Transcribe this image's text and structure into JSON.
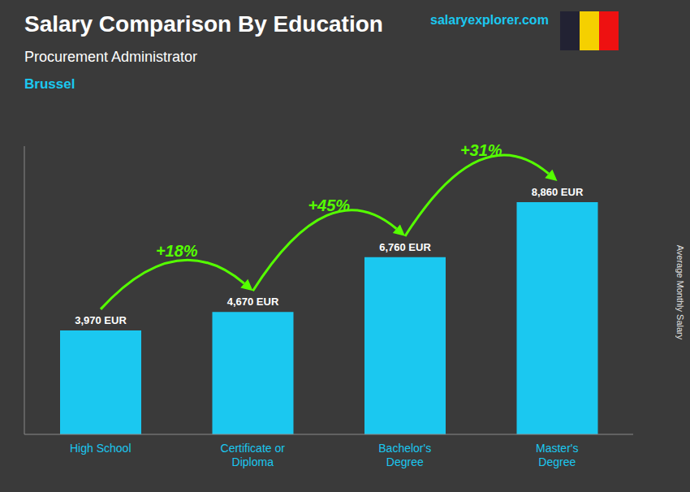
{
  "chart_data": {
    "type": "bar",
    "title": "Salary Comparison By Education",
    "subtitle": "Procurement Administrator",
    "ylabel": "Average Monthly Salary",
    "annotations": [
      "Brussel",
      "salaryexplorer.com",
      "+18%",
      "+45%",
      "+31%"
    ],
    "categories": [
      "High School",
      "Certificate or\nDiploma",
      "Bachelor's\nDegree",
      "Master's\nDegree"
    ],
    "values": [
      3970,
      4670,
      6760,
      8860
    ],
    "value_labels": [
      "3,970 EUR",
      "4,670 EUR",
      "6,760 EUR",
      "8,860 EUR"
    ],
    "data_labels": true,
    "color": "#1BC8F0",
    "ylim": [
      0,
      11000
    ],
    "tick_labels": "x",
    "grid": false
  }
}
